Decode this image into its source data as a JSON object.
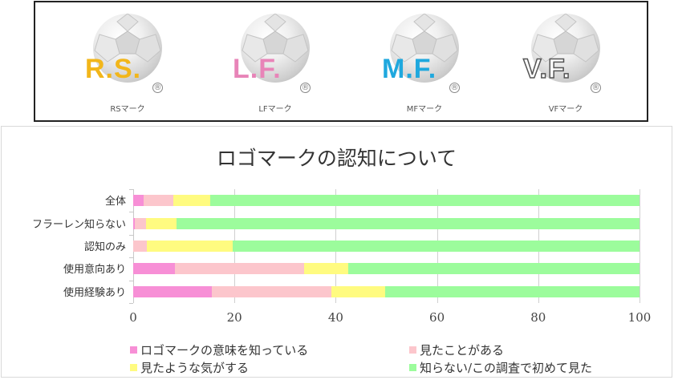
{
  "logos": [
    {
      "mark": "R.S.",
      "caption": "RSマーク",
      "color": "#f2b61a",
      "reg": "®"
    },
    {
      "mark": "L.F.",
      "caption": "LFマーク",
      "color": "#e884b8",
      "reg": "®"
    },
    {
      "mark": "M.F.",
      "caption": "MFマーク",
      "color": "#1fa8de",
      "reg": "®"
    },
    {
      "mark": "V.F.",
      "caption": "VFマーク",
      "color": "#ffffff",
      "reg": "®"
    }
  ],
  "chart_data": {
    "type": "bar",
    "orientation": "horizontal",
    "stacked": true,
    "title": "ロゴマークの認知について",
    "xlabel": "",
    "ylabel": "",
    "xlim": [
      0,
      100
    ],
    "xticks": [
      "0",
      "20",
      "40",
      "60",
      "80",
      "100"
    ],
    "grid": true,
    "legend_position": "bottom",
    "categories": [
      "全体",
      "フラーレン知らない",
      "認知のみ",
      "使用意向あり",
      "使用経験あり"
    ],
    "series": [
      {
        "name": "ロゴマークの意味を知っている",
        "color": "#f78fd6",
        "values": [
          2.1,
          0.3,
          0.0,
          8.3,
          15.6
        ]
      },
      {
        "name": "見たことがある",
        "color": "#fcc6cc",
        "values": [
          5.9,
          2.2,
          2.7,
          25.5,
          23.5
        ]
      },
      {
        "name": "見たような気がする",
        "color": "#fffb80",
        "values": [
          7.2,
          6.1,
          17.0,
          8.6,
          10.6
        ]
      },
      {
        "name": "知らない/この調査で初めて見た",
        "color": "#9cfc9c",
        "values": [
          84.8,
          91.4,
          80.3,
          57.6,
          50.3
        ]
      }
    ]
  }
}
